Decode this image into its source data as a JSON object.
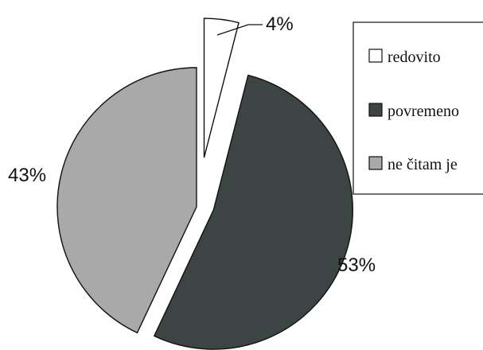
{
  "chart_data": {
    "type": "pie",
    "title": "",
    "slices": [
      {
        "label": "redovito",
        "value": 4,
        "display": "4%",
        "color": "#ffffff",
        "exploded": true
      },
      {
        "label": "povremeno",
        "value": 53,
        "display": "53%",
        "color": "#3d4544",
        "exploded": true
      },
      {
        "label": "ne čitam je",
        "value": 43,
        "display": "43%",
        "color": "#a8a9a8",
        "exploded": false
      }
    ],
    "legend": {
      "position": "right",
      "entries": [
        "redovito",
        "povremeno",
        "ne čitam je"
      ]
    }
  }
}
